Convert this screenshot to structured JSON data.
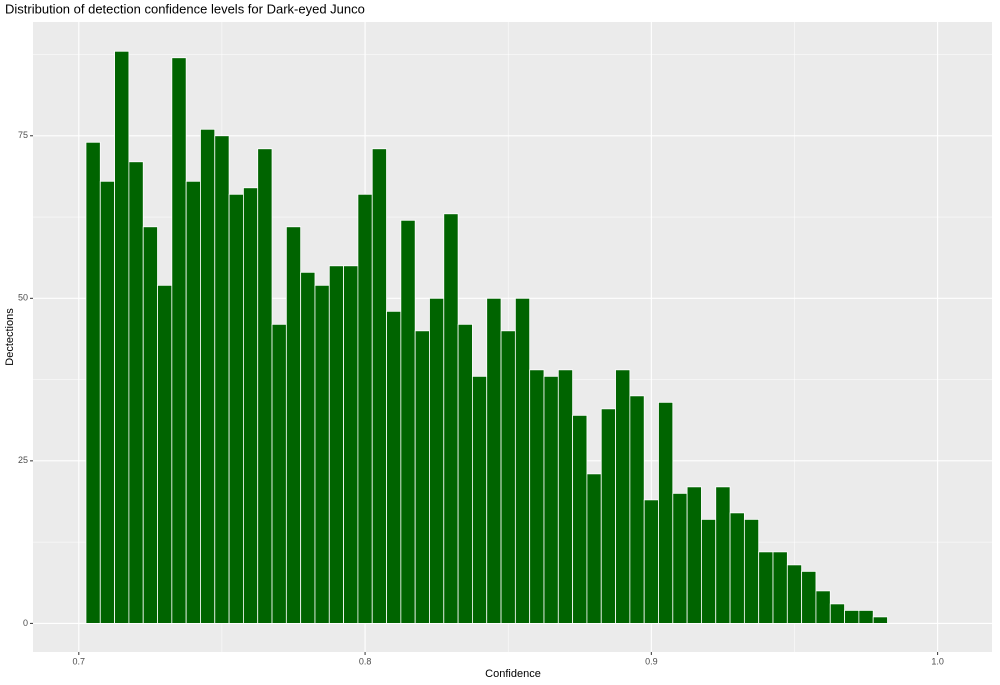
{
  "chart_data": {
    "type": "histogram",
    "title": "Distribution of detection confidence levels for Dark-eyed Junco",
    "xlabel": "Confidence",
    "ylabel": "Dectections",
    "bins": [
      0.7025,
      0.7075,
      0.7125,
      0.7175,
      0.7225,
      0.7275,
      0.7325,
      0.7375,
      0.7425,
      0.7475,
      0.7525,
      0.7575,
      0.7625,
      0.7675,
      0.7725,
      0.7775,
      0.7825,
      0.7875,
      0.7925,
      0.7975,
      0.8025,
      0.8075,
      0.8125,
      0.8175,
      0.8225,
      0.8275,
      0.8325,
      0.8375,
      0.8425,
      0.8475,
      0.8525,
      0.8575,
      0.8625,
      0.8675,
      0.8725,
      0.8775,
      0.8825,
      0.8875,
      0.8925,
      0.8975,
      0.9025,
      0.9075,
      0.9125,
      0.9175,
      0.9225,
      0.9275,
      0.9325,
      0.9375,
      0.9425,
      0.9475,
      0.9525,
      0.9575,
      0.9625,
      0.9675,
      0.9725,
      0.9775,
      0.9825
    ],
    "values": [
      74,
      68,
      88,
      71,
      61,
      52,
      87,
      68,
      76,
      75,
      66,
      67,
      73,
      46,
      61,
      54,
      52,
      55,
      55,
      66,
      73,
      48,
      62,
      45,
      50,
      63,
      46,
      38,
      50,
      45,
      50,
      39,
      38,
      39,
      32,
      23,
      33,
      39,
      35,
      19,
      34,
      20,
      21,
      16,
      21,
      17,
      16,
      11,
      11,
      9,
      8,
      5,
      3,
      2,
      2,
      1
    ],
    "color": "#006400",
    "xlim": [
      0.684,
      1.019
    ],
    "ylim": [
      -4.4,
      92.5
    ],
    "xticks": [
      0.7,
      0.8,
      0.9,
      {
        "value": 1,
        "label": "1.0"
      }
    ],
    "yticks": [
      0,
      25,
      50,
      75
    ],
    "x_minor_ticks": [
      0.75,
      0.85,
      0.95
    ],
    "y_minor_ticks": [
      12.5,
      37.5,
      62.5,
      87.5
    ],
    "grid": true
  }
}
